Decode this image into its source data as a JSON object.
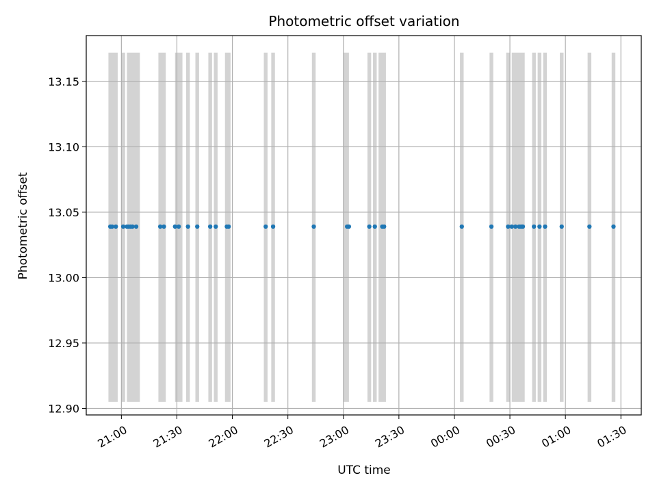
{
  "chart_data": {
    "type": "scatter",
    "title": "Photometric offset variation",
    "xlabel": "UTC time",
    "ylabel": "Photometric offset",
    "xlim": [
      "20:41",
      "01:41"
    ],
    "ylim": [
      12.895,
      13.185
    ],
    "grid": true,
    "x_ticks": [
      "21:00",
      "21:30",
      "22:00",
      "22:30",
      "23:00",
      "23:30",
      "00:00",
      "00:30",
      "01:00",
      "01:30"
    ],
    "y_ticks": [
      "12.90",
      "12.95",
      "13.00",
      "13.05",
      "13.10",
      "13.15"
    ],
    "band_range": [
      12.905,
      13.172
    ],
    "band_color": "#d3d3d3",
    "point_color": "#1f77b4",
    "series": [
      {
        "values": [
          {
            "x": "20:54",
            "y": 13.039
          },
          {
            "x": "20:55",
            "y": 13.039
          },
          {
            "x": "20:57",
            "y": 13.039
          },
          {
            "x": "21:01",
            "y": 13.039
          },
          {
            "x": "21:03",
            "y": 13.039
          },
          {
            "x": "21:04",
            "y": 13.039
          },
          {
            "x": "21:05",
            "y": 13.039
          },
          {
            "x": "21:06",
            "y": 13.039
          },
          {
            "x": "21:08",
            "y": 13.039
          },
          {
            "x": "21:21",
            "y": 13.039
          },
          {
            "x": "21:23",
            "y": 13.039
          },
          {
            "x": "21:29",
            "y": 13.039
          },
          {
            "x": "21:31",
            "y": 13.039
          },
          {
            "x": "21:36",
            "y": 13.039
          },
          {
            "x": "21:41",
            "y": 13.039
          },
          {
            "x": "21:48",
            "y": 13.039
          },
          {
            "x": "21:51",
            "y": 13.039
          },
          {
            "x": "21:57",
            "y": 13.039
          },
          {
            "x": "21:58",
            "y": 13.039
          },
          {
            "x": "22:18",
            "y": 13.039
          },
          {
            "x": "22:22",
            "y": 13.039
          },
          {
            "x": "22:44",
            "y": 13.039
          },
          {
            "x": "23:02",
            "y": 13.039
          },
          {
            "x": "23:03",
            "y": 13.039
          },
          {
            "x": "23:14",
            "y": 13.039
          },
          {
            "x": "23:17",
            "y": 13.039
          },
          {
            "x": "23:21",
            "y": 13.039
          },
          {
            "x": "23:22",
            "y": 13.039
          },
          {
            "x": "00:04",
            "y": 13.039
          },
          {
            "x": "00:20",
            "y": 13.039
          },
          {
            "x": "00:29",
            "y": 13.039
          },
          {
            "x": "00:31",
            "y": 13.039
          },
          {
            "x": "00:33",
            "y": 13.039
          },
          {
            "x": "00:35",
            "y": 13.039
          },
          {
            "x": "00:36",
            "y": 13.039
          },
          {
            "x": "00:37",
            "y": 13.039
          },
          {
            "x": "00:43",
            "y": 13.039
          },
          {
            "x": "00:46",
            "y": 13.039
          },
          {
            "x": "00:49",
            "y": 13.039
          },
          {
            "x": "00:58",
            "y": 13.039
          },
          {
            "x": "01:13",
            "y": 13.039
          },
          {
            "x": "01:26",
            "y": 13.039
          }
        ]
      }
    ],
    "bands": [
      {
        "start": "20:53",
        "end": "20:58"
      },
      {
        "start": "21:00",
        "end": "21:02"
      },
      {
        "start": "21:03",
        "end": "21:10"
      },
      {
        "start": "21:20",
        "end": "21:24"
      },
      {
        "start": "21:29",
        "end": "21:33"
      },
      {
        "start": "21:35",
        "end": "21:37"
      },
      {
        "start": "21:40",
        "end": "21:42"
      },
      {
        "start": "21:47",
        "end": "21:49"
      },
      {
        "start": "21:50",
        "end": "21:52"
      },
      {
        "start": "21:56",
        "end": "21:59"
      },
      {
        "start": "22:17",
        "end": "22:19"
      },
      {
        "start": "22:21",
        "end": "22:23"
      },
      {
        "start": "22:43",
        "end": "22:45"
      },
      {
        "start": "23:00",
        "end": "23:03"
      },
      {
        "start": "23:13",
        "end": "23:15"
      },
      {
        "start": "23:16",
        "end": "23:18"
      },
      {
        "start": "23:19",
        "end": "23:23"
      },
      {
        "start": "00:03",
        "end": "00:05"
      },
      {
        "start": "00:19",
        "end": "00:21"
      },
      {
        "start": "00:28",
        "end": "00:30"
      },
      {
        "start": "00:31",
        "end": "00:38"
      },
      {
        "start": "00:42",
        "end": "00:44"
      },
      {
        "start": "00:45",
        "end": "00:47"
      },
      {
        "start": "00:48",
        "end": "00:50"
      },
      {
        "start": "00:57",
        "end": "00:59"
      },
      {
        "start": "01:12",
        "end": "01:14"
      },
      {
        "start": "01:25",
        "end": "01:27"
      }
    ]
  }
}
